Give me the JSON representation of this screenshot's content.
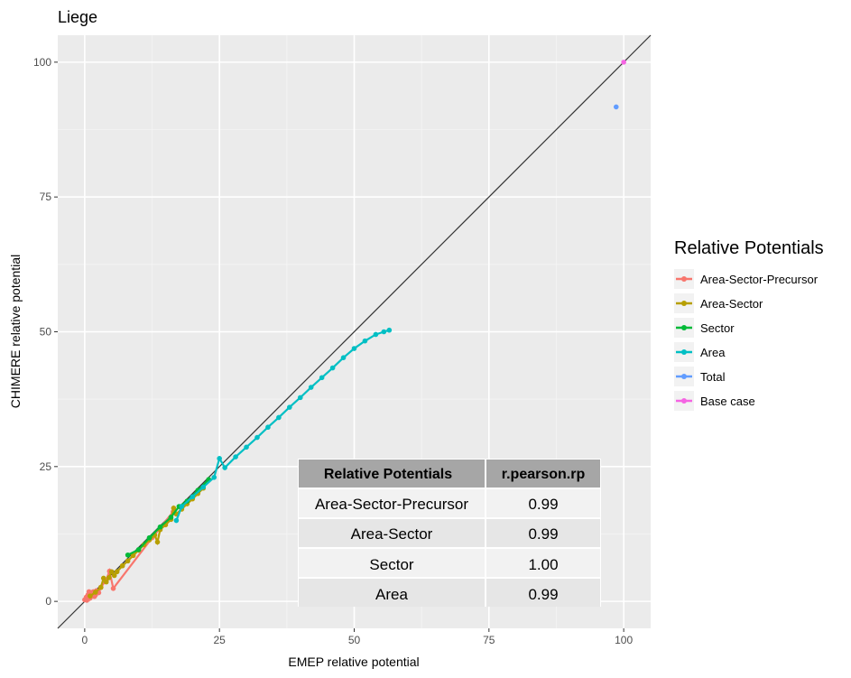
{
  "chart_data": {
    "type": "scatter",
    "title": "Liege",
    "xlabel": "EMEP relative potential",
    "ylabel": "CHIMERE relative potential",
    "xlim": [
      -5,
      105
    ],
    "ylim": [
      -5,
      105
    ],
    "x_ticks": [
      0,
      25,
      50,
      75,
      100
    ],
    "y_ticks": [
      0,
      25,
      50,
      75,
      100
    ],
    "grid": true,
    "identity_line": true,
    "legend": {
      "title": "Relative Potentials",
      "position": "right"
    },
    "series": [
      {
        "name": "Area-Sector-Precursor",
        "color": "#F8766D",
        "points": [
          [
            0,
            0.3
          ],
          [
            0.3,
            0.8
          ],
          [
            0.6,
            1.2
          ],
          [
            1,
            0.6
          ],
          [
            1.3,
            1.4
          ],
          [
            1.6,
            1.8
          ],
          [
            2,
            1.2
          ],
          [
            2.2,
            2
          ],
          [
            0.8,
            1.8
          ],
          [
            1.8,
            0.9
          ],
          [
            3,
            2.6
          ],
          [
            4,
            4
          ],
          [
            4.6,
            5.6
          ],
          [
            5.3,
            2.4
          ],
          [
            12.5,
            11.8
          ],
          [
            16.4,
            16.6
          ],
          [
            2.6,
            1.6
          ],
          [
            0.4,
            0.2
          ]
        ]
      },
      {
        "name": "Area-Sector",
        "color": "#B79F00",
        "points": [
          [
            1,
            1
          ],
          [
            2,
            1.7
          ],
          [
            3,
            2.6
          ],
          [
            3.5,
            4.3
          ],
          [
            4,
            3.6
          ],
          [
            4.5,
            4.4
          ],
          [
            5,
            5.5
          ],
          [
            5.5,
            4.8
          ],
          [
            6,
            5.5
          ],
          [
            7,
            6.6
          ],
          [
            8,
            7.5
          ],
          [
            9,
            8.5
          ],
          [
            10,
            9.5
          ],
          [
            11,
            10.5
          ],
          [
            12,
            11.4
          ],
          [
            13,
            12.3
          ],
          [
            13.5,
            11
          ],
          [
            14,
            13.3
          ],
          [
            15,
            14.2
          ],
          [
            16,
            15.2
          ],
          [
            16.5,
            17.3
          ],
          [
            17,
            16.2
          ],
          [
            18,
            17.1
          ],
          [
            19,
            18.1
          ],
          [
            20,
            19
          ],
          [
            21,
            20
          ],
          [
            22,
            21
          ]
        ]
      },
      {
        "name": "Sector",
        "color": "#00BA38",
        "points": [
          [
            8,
            8.6
          ],
          [
            10,
            9.6
          ],
          [
            12,
            11.8
          ],
          [
            14,
            13.8
          ],
          [
            16,
            15.6
          ],
          [
            17.5,
            17.6
          ],
          [
            19,
            18.6
          ],
          [
            21,
            20.6
          ],
          [
            23,
            22.6
          ]
        ]
      },
      {
        "name": "Area",
        "color": "#00BFC4",
        "points": [
          [
            17,
            15
          ],
          [
            18,
            17.6
          ],
          [
            20,
            19.4
          ],
          [
            22,
            21.2
          ],
          [
            24,
            23
          ],
          [
            25,
            26.5
          ],
          [
            26,
            24.8
          ],
          [
            28,
            26.8
          ],
          [
            30,
            28.6
          ],
          [
            32,
            30.4
          ],
          [
            34,
            32.3
          ],
          [
            36,
            34.1
          ],
          [
            38,
            36
          ],
          [
            40,
            37.8
          ],
          [
            42,
            39.7
          ],
          [
            44,
            41.5
          ],
          [
            46,
            43.3
          ],
          [
            48,
            45.2
          ],
          [
            50,
            46.9
          ],
          [
            52,
            48.3
          ],
          [
            54,
            49.5
          ],
          [
            55.5,
            50
          ],
          [
            56.5,
            50.3
          ]
        ]
      },
      {
        "name": "Total",
        "color": "#619CFF",
        "points": [
          [
            98.6,
            91.7
          ]
        ]
      },
      {
        "name": "Base case",
        "color": "#F564E3",
        "points": [
          [
            100,
            100
          ]
        ]
      }
    ],
    "table": {
      "headers": [
        "Relative Potentials",
        "r.pearson.rp"
      ],
      "rows": [
        [
          "Area-Sector-Precursor",
          "0.99"
        ],
        [
          "Area-Sector",
          "0.99"
        ],
        [
          "Sector",
          "1.00"
        ],
        [
          "Area",
          "0.99"
        ]
      ]
    }
  }
}
